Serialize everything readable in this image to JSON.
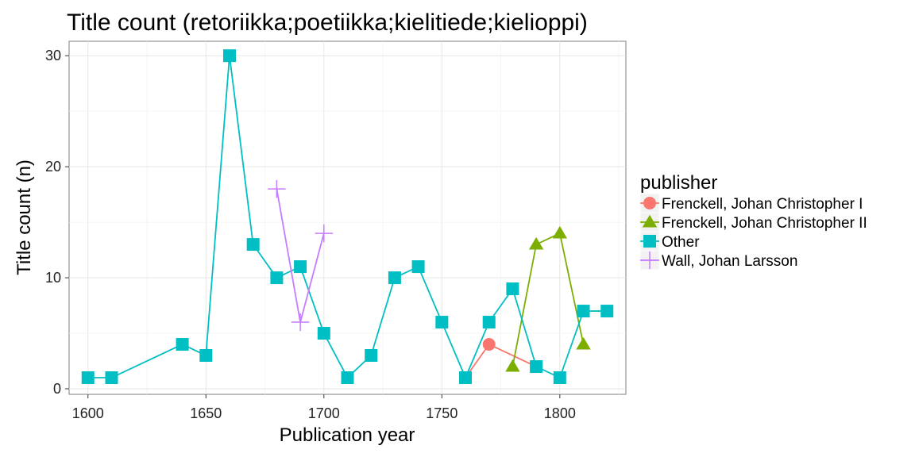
{
  "chart_data": {
    "type": "line",
    "title": "Title count (retoriikka;poetiikka;kielitiede;kielioppi)",
    "xlabel": "Publication year",
    "ylabel": "Title count (n)",
    "xlim": [
      1592,
      1828
    ],
    "ylim": [
      -0.5,
      31.3
    ],
    "x_ticks": [
      1600,
      1650,
      1700,
      1750,
      1800
    ],
    "x_tick_labels": [
      "1600",
      "1650",
      "1700",
      "1750",
      "1800"
    ],
    "y_ticks": [
      0,
      10,
      20,
      30
    ],
    "y_tick_labels": [
      "0",
      "10",
      "20",
      "30"
    ],
    "grid": true,
    "legend": {
      "title": "publisher",
      "position": "right"
    },
    "series": [
      {
        "name": "Frenckell, Johan Christopher I",
        "color": "#F8766D",
        "marker": "circle",
        "x": [
          1760,
          1770,
          1790
        ],
        "y": [
          1,
          4,
          2
        ]
      },
      {
        "name": "Frenckell, Johan Christopher II",
        "color": "#7CAE00",
        "marker": "triangle",
        "x": [
          1780,
          1790,
          1800,
          1810
        ],
        "y": [
          2,
          13,
          14,
          4
        ]
      },
      {
        "name": "Other",
        "color": "#00BFC4",
        "marker": "square",
        "x": [
          1600,
          1610,
          1640,
          1650,
          1660,
          1670,
          1680,
          1690,
          1700,
          1710,
          1720,
          1730,
          1740,
          1750,
          1760,
          1770,
          1780,
          1790,
          1800,
          1810,
          1820
        ],
        "y": [
          1,
          1,
          4,
          3,
          30,
          13,
          10,
          11,
          5,
          1,
          3,
          10,
          11,
          6,
          1,
          6,
          9,
          2,
          1,
          7,
          7
        ]
      },
      {
        "name": "Wall, Johan Larsson",
        "color": "#C77CFF",
        "marker": "plus",
        "x": [
          1680,
          1690,
          1700
        ],
        "y": [
          18,
          6,
          14
        ]
      }
    ]
  }
}
